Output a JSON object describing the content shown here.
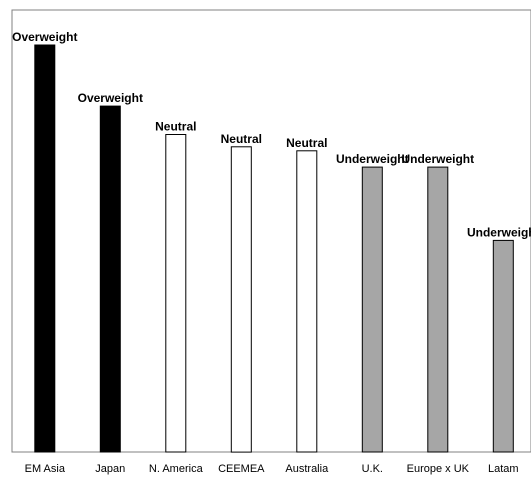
{
  "chart_data": {
    "type": "bar",
    "categories": [
      "EM Asia",
      "Japan",
      "N. America",
      "CEEMEA",
      "Australia",
      "U.K.",
      "Europe x UK",
      "Latam"
    ],
    "values": [
      100,
      85,
      78,
      75,
      74,
      70,
      70,
      52
    ],
    "bar_labels": [
      "Overweight",
      "Overweight",
      "Neutral",
      "Neutral",
      "Neutral",
      "Underweight",
      "Underweight",
      "Underweight"
    ],
    "title": "",
    "xlabel": "",
    "ylabel": "",
    "ylim": [
      0,
      100
    ],
    "grid": false,
    "legend": "none",
    "colors": {
      "Overweight": "#000000",
      "Neutral": "#ffffff",
      "Underweight": "#a6a6a6",
      "bar_stroke": "#000000",
      "frame": "#808080",
      "text": "#000000"
    }
  }
}
